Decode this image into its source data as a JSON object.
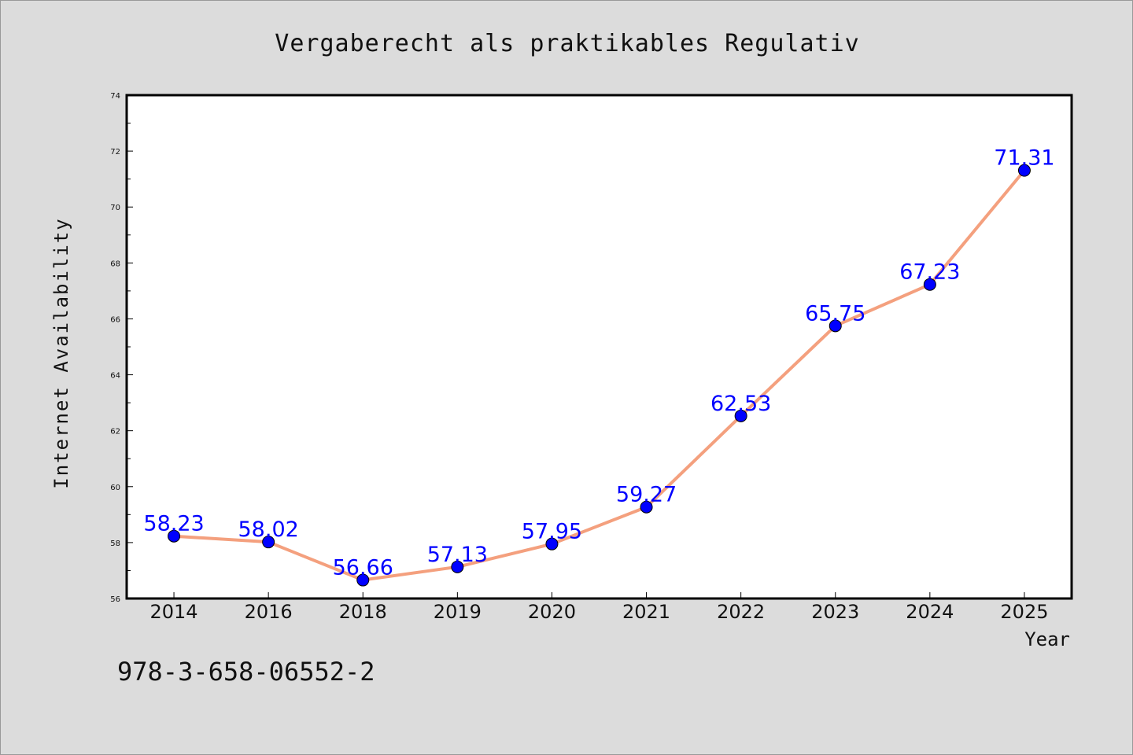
{
  "chart_data": {
    "type": "line",
    "title": "Vergaberecht als praktikables Regulativ",
    "xlabel": "Year",
    "ylabel": "Internet Availability",
    "categories": [
      "2014",
      "2016",
      "2018",
      "2019",
      "2020",
      "2021",
      "2022",
      "2023",
      "2024",
      "2025"
    ],
    "series": [
      {
        "values": [
          58.23,
          58.02,
          56.66,
          57.13,
          57.95,
          59.27,
          62.53,
          65.75,
          67.23,
          71.31
        ],
        "data_labels": [
          "58.23",
          "58.02",
          "56.66",
          "57.13",
          "57.95",
          "59.27",
          "62.53",
          "65.75",
          "67.23",
          "71.31"
        ],
        "line_color": "#f4a07e",
        "marker_color": "#0000ff"
      }
    ],
    "ylim": [
      56,
      74
    ],
    "yticks": [
      "56",
      "58",
      "60",
      "62",
      "64",
      "66",
      "68",
      "70",
      "72",
      "74"
    ],
    "grid": false,
    "legend": "none"
  },
  "footer": {
    "isbn": "978-3-658-06552-2"
  },
  "colors": {
    "background": "#dcdcdc",
    "plot_background": "#ffffff",
    "label_color": "#0000ff"
  }
}
